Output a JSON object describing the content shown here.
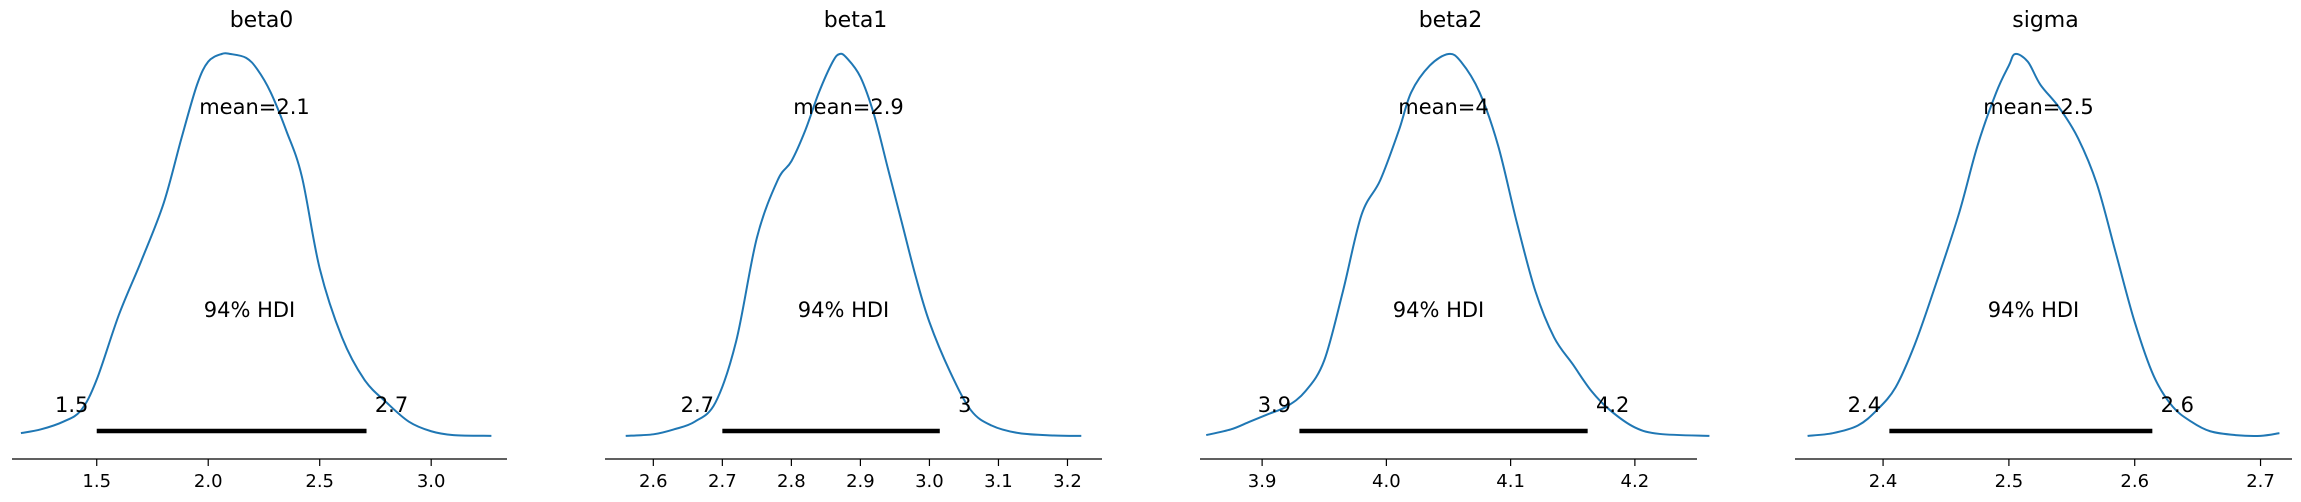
{
  "chart_data": [
    {
      "type": "area",
      "title": "beta0",
      "xlim": [
        1.12,
        3.34
      ],
      "xticks": [
        "1.5",
        "2.0",
        "2.5",
        "3.0"
      ],
      "xtick_values": [
        1.5,
        2.0,
        2.5,
        3.0
      ],
      "mean_label": "mean=2.1",
      "hdi_label": "94% HDI",
      "hdi": [
        1.5,
        2.71
      ],
      "hdi_low_label": "1.5",
      "hdi_high_label": "2.7",
      "density": {
        "x": [
          1.16,
          1.25,
          1.35,
          1.43,
          1.5,
          1.6,
          1.7,
          1.8,
          1.88,
          1.95,
          2.0,
          2.06,
          2.1,
          2.17,
          2.22,
          2.28,
          2.35,
          2.42,
          2.5,
          2.6,
          2.7,
          2.8,
          2.9,
          3.0,
          3.1,
          3.27
        ],
        "y": [
          0.01,
          0.02,
          0.04,
          0.07,
          0.15,
          0.32,
          0.46,
          0.61,
          0.78,
          0.92,
          0.98,
          1.0,
          1.0,
          0.99,
          0.96,
          0.9,
          0.8,
          0.68,
          0.44,
          0.26,
          0.15,
          0.09,
          0.04,
          0.015,
          0.005,
          0.003
        ]
      }
    },
    {
      "type": "area",
      "title": "beta1",
      "xlim": [
        2.53,
        3.25
      ],
      "xticks": [
        "2.6",
        "2.7",
        "2.8",
        "2.9",
        "3.0",
        "3.1",
        "3.2"
      ],
      "xtick_values": [
        2.6,
        2.7,
        2.8,
        2.9,
        3.0,
        3.1,
        3.2
      ],
      "mean_label": "mean=2.9",
      "hdi_label": "94% HDI",
      "hdi": [
        2.7,
        3.015
      ],
      "hdi_low_label": "2.7",
      "hdi_high_label": "3",
      "density": {
        "x": [
          2.56,
          2.6,
          2.63,
          2.66,
          2.69,
          2.72,
          2.75,
          2.78,
          2.8,
          2.82,
          2.84,
          2.86,
          2.87,
          2.88,
          2.9,
          2.92,
          2.94,
          2.96,
          2.98,
          3.0,
          3.03,
          3.06,
          3.09,
          3.13,
          3.18,
          3.22
        ],
        "y": [
          0.003,
          0.007,
          0.02,
          0.04,
          0.09,
          0.25,
          0.52,
          0.67,
          0.72,
          0.8,
          0.9,
          0.98,
          1.0,
          0.99,
          0.94,
          0.84,
          0.7,
          0.56,
          0.42,
          0.3,
          0.17,
          0.07,
          0.03,
          0.01,
          0.004,
          0.003
        ]
      }
    },
    {
      "type": "area",
      "title": "beta2",
      "xlim": [
        3.85,
        4.25
      ],
      "xticks": [
        "3.9",
        "4.0",
        "4.1",
        "4.2"
      ],
      "xtick_values": [
        3.9,
        4.0,
        4.1,
        4.2
      ],
      "mean_label": "mean=4",
      "hdi_label": "94% HDI",
      "hdi": [
        3.93,
        4.162
      ],
      "hdi_low_label": "3.9",
      "hdi_high_label": "4.2",
      "density": {
        "x": [
          3.855,
          3.875,
          3.89,
          3.905,
          3.92,
          3.935,
          3.95,
          3.965,
          3.98,
          3.995,
          4.01,
          4.02,
          4.035,
          4.05,
          4.06,
          4.075,
          4.09,
          4.105,
          4.12,
          4.135,
          4.15,
          4.165,
          4.18,
          4.2,
          4.22,
          4.26
        ],
        "y": [
          0.005,
          0.02,
          0.04,
          0.06,
          0.08,
          0.12,
          0.2,
          0.38,
          0.58,
          0.67,
          0.8,
          0.9,
          0.97,
          1.0,
          0.98,
          0.9,
          0.76,
          0.56,
          0.38,
          0.26,
          0.19,
          0.12,
          0.07,
          0.025,
          0.008,
          0.003
        ]
      }
    },
    {
      "type": "area",
      "title": "sigma",
      "xlim": [
        2.33,
        2.725
      ],
      "xticks": [
        "2.4",
        "2.5",
        "2.6",
        "2.7"
      ],
      "xtick_values": [
        2.4,
        2.5,
        2.6,
        2.7
      ],
      "mean_label": "mean=2.5",
      "hdi_label": "94% HDI",
      "hdi": [
        2.405,
        2.614
      ],
      "hdi_low_label": "2.4",
      "hdi_high_label": "2.6",
      "density": {
        "x": [
          2.34,
          2.36,
          2.38,
          2.395,
          2.41,
          2.425,
          2.44,
          2.46,
          2.475,
          2.49,
          2.5,
          2.505,
          2.515,
          2.525,
          2.54,
          2.555,
          2.57,
          2.585,
          2.6,
          2.615,
          2.63,
          2.645,
          2.66,
          2.68,
          2.7,
          2.715
        ],
        "y": [
          0.003,
          0.01,
          0.03,
          0.07,
          0.13,
          0.24,
          0.38,
          0.58,
          0.76,
          0.9,
          0.97,
          1.0,
          0.98,
          0.92,
          0.86,
          0.78,
          0.66,
          0.48,
          0.3,
          0.16,
          0.08,
          0.04,
          0.015,
          0.005,
          0.003,
          0.01
        ]
      }
    }
  ],
  "colors": {
    "density_line": "#1f77b4",
    "hdi_bar": "#000000",
    "axis": "#000000",
    "text": "#000000"
  }
}
